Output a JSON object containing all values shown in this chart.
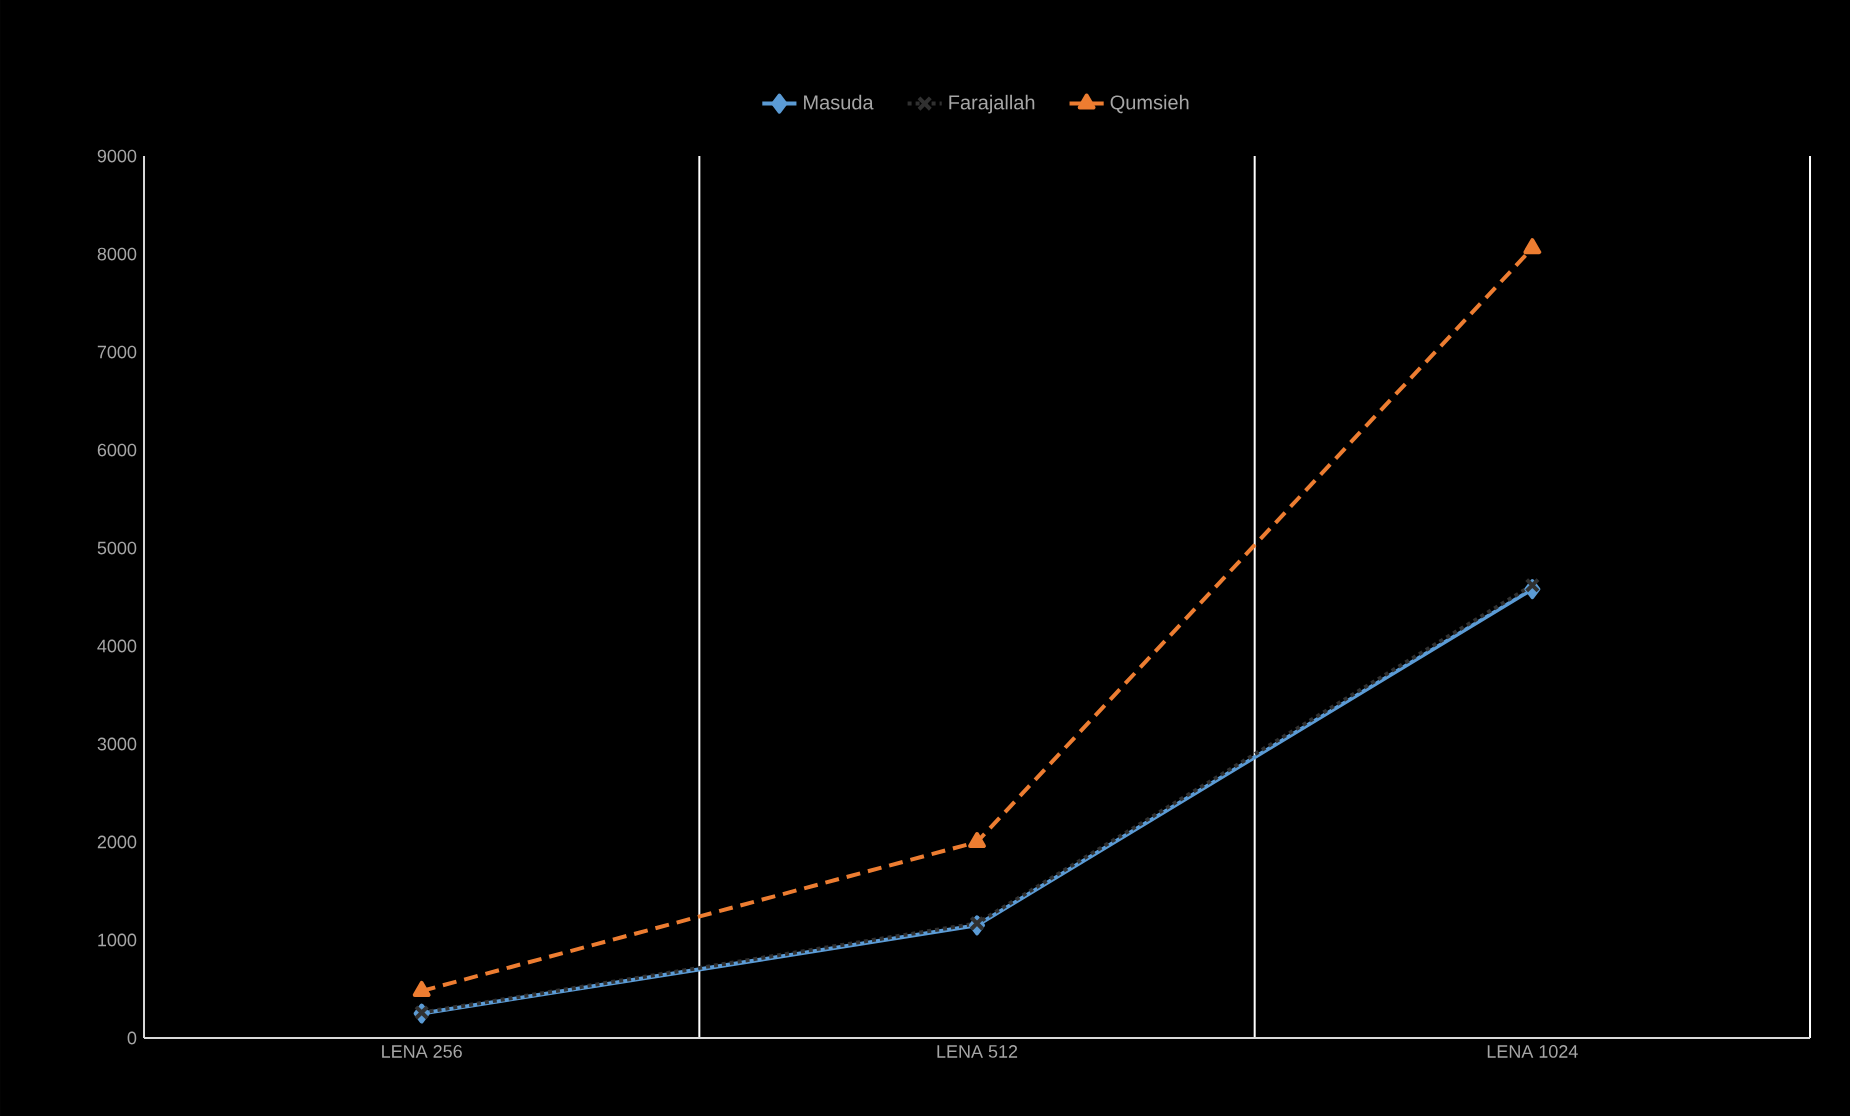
{
  "chart_data": {
    "type": "line",
    "categories": [
      "LENA 256",
      "LENA 512",
      "LENA 1024"
    ],
    "series": [
      {
        "name": "Masuda",
        "color": "#5b9bd5",
        "marker": "diamond",
        "line_style": "solid",
        "values": [
          250,
          1150,
          4580
        ]
      },
      {
        "name": "Farajallah",
        "color": "#303030",
        "marker": "cross",
        "line_style": "dotted",
        "values": [
          260,
          1170,
          4620
        ]
      },
      {
        "name": "Qumsieh",
        "color": "#ed7d31",
        "marker": "triangle",
        "line_style": "dashed",
        "values": [
          480,
          2000,
          8060
        ]
      }
    ],
    "ylim": [
      0,
      9000
    ],
    "yticks": [
      0,
      1000,
      2000,
      3000,
      4000,
      5000,
      6000,
      7000,
      8000,
      9000
    ],
    "grid": "x",
    "legend": "top"
  }
}
